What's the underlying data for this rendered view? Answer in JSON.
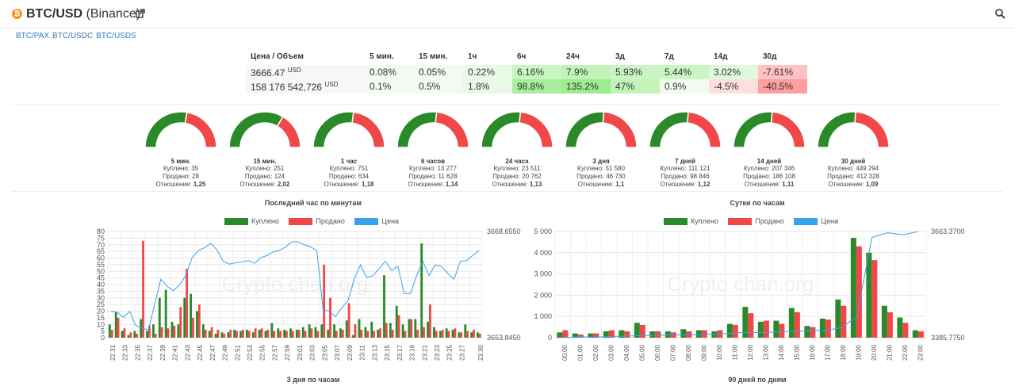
{
  "header": {
    "logo_glyph": "₿",
    "pair": "BTC/USD",
    "exchange": "(Binance)",
    "pairs": [
      "BTC/PAX",
      "BTC/USDC",
      "BTC/USDS"
    ]
  },
  "stats": {
    "headers": [
      "Цена / Объем",
      "5 мин.",
      "15 мин.",
      "1ч",
      "6ч",
      "24ч",
      "3д",
      "7д",
      "14д",
      "30д"
    ],
    "price": "3666.47",
    "price_unit": "USD",
    "volume": "158 176 542,726",
    "volume_unit": "USD",
    "price_changes": [
      "0.08%",
      "0.05%",
      "0.22%",
      "6.16%",
      "7.9%",
      "5.93%",
      "5.44%",
      "3.02%",
      "-7.61%"
    ],
    "price_colors": [
      "#f1fbef",
      "#f1fbef",
      "#e8fae5",
      "#c9f5c2",
      "#c2f4ba",
      "#c9f5c2",
      "#cbf5c4",
      "#e0f8dc",
      "#ffc2c2"
    ],
    "volume_changes": [
      "0.1%",
      "0.5%",
      "1.8%",
      "98.8%",
      "135.2%",
      "47%",
      "0.9%",
      "-4.5%",
      "-40.5%"
    ],
    "volume_colors": [
      "#f1fbef",
      "#f1fbef",
      "#e8fae5",
      "#a7ef9c",
      "#9ded90",
      "#c2f4ba",
      "#f1fbef",
      "#ffdede",
      "#ff9e9e"
    ]
  },
  "gauges": [
    {
      "label": "5 мин.",
      "bought": "35",
      "sold": "28",
      "ratio": "1,25",
      "share": 0.556
    },
    {
      "label": "15 мин.",
      "bought": "251",
      "sold": "124",
      "ratio": "2,02",
      "share": 0.669
    },
    {
      "label": "1 час",
      "bought": "751",
      "sold": "634",
      "ratio": "1,18",
      "share": 0.542
    },
    {
      "label": "6 часов",
      "bought": "13 277",
      "sold": "11 628",
      "ratio": "1,14",
      "share": 0.533
    },
    {
      "label": "24 часа",
      "bought": "23 511",
      "sold": "20 762",
      "ratio": "1,13",
      "share": 0.531
    },
    {
      "label": "3 дня",
      "bought": "51 580",
      "sold": "46 730",
      "ratio": "1,1",
      "share": 0.525
    },
    {
      "label": "7 дней",
      "bought": "111 121",
      "sold": "98 846",
      "ratio": "1,12",
      "share": 0.529
    },
    {
      "label": "14 дней",
      "bought": "207 346",
      "sold": "186 108",
      "ratio": "1,11",
      "share": 0.527
    },
    {
      "label": "30 дней",
      "bought": "449 294",
      "sold": "412 328",
      "ratio": "1,09",
      "share": 0.521
    }
  ],
  "gauge_text": {
    "bought_label": "Куплено:",
    "sold_label": "Продано:",
    "ratio_label": "Отношение:"
  },
  "legend": {
    "bought": "Куплено",
    "sold": "Продано",
    "price": "Цена"
  },
  "colors": {
    "bought": "#2a8a2a",
    "sold": "#f04848",
    "price": "#36a2eb",
    "header": "#333333",
    "link": "#337ab7"
  },
  "watermark": "Crypto chan.org",
  "section_titles": {
    "bottom_left": "3 дня по часам",
    "bottom_right": "90 дней по дням"
  },
  "chart_data": [
    {
      "type": "bar",
      "title": "Последний час по минутам",
      "categories": [
        "22:31",
        "22:32",
        "22:33",
        "22:34",
        "22:35",
        "22:36",
        "22:37",
        "22:38",
        "22:39",
        "22:40",
        "22:41",
        "22:42",
        "22:43",
        "22:44",
        "22:45",
        "22:46",
        "22:47",
        "22:48",
        "22:49",
        "22:50",
        "22:51",
        "22:52",
        "22:53",
        "22:54",
        "22:55",
        "22:56",
        "22:57",
        "22:58",
        "22:59",
        "23:00",
        "23:01",
        "23:02",
        "23:03",
        "23:04",
        "23:05",
        "23:06",
        "23:07",
        "23:08",
        "23:09",
        "23:10",
        "23:11",
        "23:12",
        "23:13",
        "23:14",
        "23:15",
        "23:16",
        "23:17",
        "23:18",
        "23:19",
        "23:20",
        "23:21",
        "23:22",
        "23:23",
        "23:24",
        "23:25",
        "23:26",
        "23:27",
        "23:28",
        "23:29",
        "23:30"
      ],
      "tick_labels": [
        "22:31",
        "22:33",
        "22:35",
        "22:37",
        "22:39",
        "22:41",
        "22:43",
        "22:45",
        "22:47",
        "22:49",
        "22:51",
        "22:53",
        "22:55",
        "22:57",
        "22:59",
        "23:01",
        "23:03",
        "23:05",
        "23:07",
        "23:09",
        "23:11",
        "23:13",
        "23:15",
        "23:17",
        "23:19",
        "23:21",
        "23:23",
        "23:25",
        "23:27",
        "23:30"
      ],
      "series": [
        {
          "name": "Куплено",
          "values": [
            10,
            19,
            5,
            2,
            5,
            14,
            5,
            10,
            30,
            36,
            12,
            10,
            30,
            33,
            20,
            10,
            5,
            3,
            4,
            4,
            6,
            5,
            6,
            4,
            6,
            5,
            11,
            7,
            6,
            7,
            6,
            8,
            10,
            8,
            10,
            6,
            10,
            7,
            13,
            2,
            14,
            8,
            12,
            6,
            47,
            11,
            24,
            10,
            14,
            14,
            71,
            12,
            8,
            5,
            7,
            6,
            4,
            10,
            4,
            4
          ]
        },
        {
          "name": "Продано",
          "values": [
            6,
            15,
            7,
            4,
            3,
            73,
            9,
            3,
            8,
            7,
            9,
            23,
            52,
            15,
            25,
            6,
            8,
            6,
            3,
            6,
            5,
            6,
            5,
            7,
            7,
            6,
            5,
            5,
            5,
            5,
            6,
            5,
            7,
            5,
            55,
            30,
            5,
            6,
            26,
            10,
            6,
            5,
            5,
            7,
            11,
            6,
            17,
            5,
            14,
            6,
            8,
            25,
            5,
            6,
            5,
            7,
            4,
            5,
            6,
            3
          ]
        },
        {
          "name": "Цена",
          "values": [
            3657.5,
            3657.4,
            3656.7,
            3657.5,
            3655.5,
            3655.2,
            3654.9,
            3658.5,
            3662.0,
            3661.0,
            3660.4,
            3661.2,
            3662.5,
            3665.0,
            3666.0,
            3666.4,
            3667.0,
            3666.1,
            3664.5,
            3664.1,
            3664.3,
            3664.4,
            3664.6,
            3664.2,
            3665.0,
            3665.3,
            3665.8,
            3666.0,
            3666.5,
            3667.2,
            3667.2,
            3666.8,
            3666.5,
            3666.0,
            3657.8,
            3657.5,
            3656.8,
            3658.0,
            3659.0,
            3662.0,
            3664.0,
            3662.2,
            3662.5,
            3663.5,
            3664.5,
            3663.2,
            3663.8,
            3660.0,
            3660.0,
            3662.5,
            3664.5,
            3662.5,
            3664.0,
            3663.8,
            3662.8,
            3662.0,
            3664.5,
            3664.6,
            3665.3,
            3666.0
          ]
        }
      ],
      "ylim": [
        0,
        80
      ],
      "yticks": [
        "0",
        "5",
        "10",
        "15",
        "20",
        "25",
        "30",
        "35",
        "40",
        "45",
        "50",
        "55",
        "60",
        "65",
        "70",
        "75",
        "80"
      ],
      "y2_labels": [
        "3668.6550",
        "3653.8450"
      ],
      "y2lim": [
        3653.845,
        3668.655
      ],
      "grid": true,
      "legend": "top"
    },
    {
      "type": "bar",
      "title": "Сутки по часам",
      "categories": [
        "00:00",
        "01:00",
        "02:00",
        "03:00",
        "04:00",
        "05:00",
        "06:00",
        "07:00",
        "08:00",
        "09:00",
        "10:00",
        "11:00",
        "12:00",
        "13:00",
        "14:00",
        "15:00",
        "16:00",
        "17:00",
        "18:00",
        "19:00",
        "20:00",
        "21:00",
        "22:00",
        "23:00"
      ],
      "series": [
        {
          "name": "Куплено",
          "values": [
            250,
            200,
            200,
            300,
            350,
            700,
            300,
            300,
            400,
            350,
            300,
            650,
            1450,
            750,
            800,
            1400,
            550,
            900,
            1800,
            4700,
            4000,
            1500,
            950,
            350
          ]
        },
        {
          "name": "Продано",
          "values": [
            350,
            150,
            200,
            350,
            300,
            600,
            300,
            250,
            300,
            350,
            350,
            600,
            1150,
            800,
            650,
            1200,
            500,
            850,
            1500,
            4300,
            3650,
            1200,
            700,
            300
          ]
        },
        {
          "name": "Цена",
          "values": [
            3386,
            3388,
            3387,
            3389,
            3390,
            3391,
            3392,
            3393,
            3393,
            3394,
            3395,
            3398,
            3400,
            3399,
            3401,
            3402,
            3404,
            3405,
            3412,
            3440,
            3648,
            3660,
            3655,
            3663
          ]
        }
      ],
      "ylim": [
        0,
        5000
      ],
      "yticks": [
        "0",
        "1 000",
        "2 000",
        "3 000",
        "4 000",
        "5 000"
      ],
      "y2_labels": [
        "3663.3700",
        "3385.7750"
      ],
      "y2lim": [
        3385.775,
        3663.37
      ],
      "grid": true,
      "legend": "top"
    }
  ]
}
